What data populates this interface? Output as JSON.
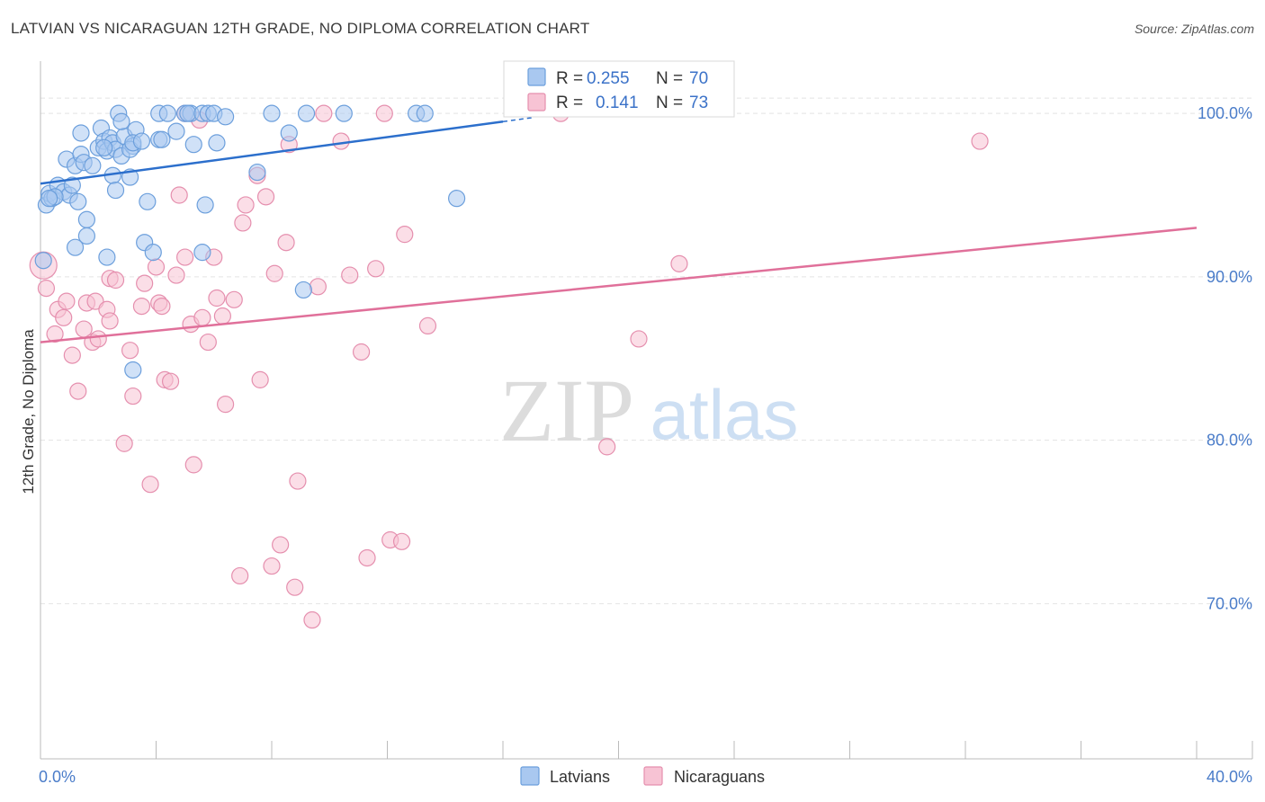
{
  "title": "LATVIAN VS NICARAGUAN 12TH GRADE, NO DIPLOMA CORRELATION CHART",
  "source": "Source: ZipAtlas.com",
  "watermark": {
    "zip": "ZIP",
    "atlas": "atlas"
  },
  "colors": {
    "latvian_fill": "#a9c8f0",
    "latvian_stroke": "#6c9fdc",
    "latvian_line": "#2c6fcc",
    "nicaraguan_fill": "#f7c3d4",
    "nicaraguan_stroke": "#e58fae",
    "nicaraguan_line": "#e0709a",
    "grid": "#e3e3e3",
    "tick_text": "#4a7cc9"
  },
  "legend": {
    "latvians": {
      "r_label": "R = ",
      "r_value": "0.255",
      "n_label": "N = ",
      "n_value": "70"
    },
    "nicaraguans": {
      "r_label": "R = ",
      "r_value": "0.141",
      "n_label": "N = ",
      "n_value": "73"
    }
  },
  "chart_data": {
    "type": "scatter",
    "title": "LATVIAN VS NICARAGUAN 12TH GRADE, NO DIPLOMA CORRELATION CHART",
    "xlabel": "",
    "ylabel": "12th Grade, No Diploma",
    "xlim": [
      0,
      40
    ],
    "ylim": [
      60.5,
      103.2
    ],
    "x_tick_labels": [
      "0.0%",
      "40.0%"
    ],
    "y_ticks": [
      70,
      80,
      90,
      100
    ],
    "y_tick_labels": [
      "70.0%",
      "80.0%",
      "90.0%",
      "100.0%"
    ],
    "legend_position": "top-center",
    "series": [
      {
        "name": "Latvians",
        "r": 0.255,
        "n": 70,
        "trend": {
          "x": [
            0,
            16
          ],
          "y": [
            95.7,
            99.5
          ],
          "dash_to": 17.0
        },
        "points": [
          [
            0.2,
            94.4
          ],
          [
            0.3,
            95.1
          ],
          [
            0.4,
            94.8
          ],
          [
            0.6,
            95.6
          ],
          [
            0.8,
            95.2
          ],
          [
            1.0,
            95.0
          ],
          [
            1.1,
            95.6
          ],
          [
            0.5,
            94.9
          ],
          [
            0.9,
            97.2
          ],
          [
            1.2,
            96.8
          ],
          [
            1.4,
            97.5
          ],
          [
            1.5,
            97.0
          ],
          [
            1.3,
            94.6
          ],
          [
            1.6,
            93.5
          ],
          [
            1.6,
            92.5
          ],
          [
            1.2,
            91.8
          ],
          [
            1.4,
            98.8
          ],
          [
            1.8,
            96.8
          ],
          [
            2.0,
            97.9
          ],
          [
            2.1,
            99.1
          ],
          [
            2.2,
            98.3
          ],
          [
            2.4,
            98.5
          ],
          [
            2.3,
            97.7
          ],
          [
            2.5,
            98.2
          ],
          [
            2.6,
            97.8
          ],
          [
            2.5,
            96.2
          ],
          [
            2.6,
            95.3
          ],
          [
            2.8,
            97.4
          ],
          [
            2.7,
            100.0
          ],
          [
            2.9,
            98.6
          ],
          [
            2.8,
            99.5
          ],
          [
            3.1,
            96.1
          ],
          [
            3.2,
            98.0
          ],
          [
            3.1,
            97.8
          ],
          [
            3.3,
            99.0
          ],
          [
            3.2,
            98.2
          ],
          [
            2.3,
            91.2
          ],
          [
            3.5,
            98.3
          ],
          [
            3.7,
            94.6
          ],
          [
            3.6,
            92.1
          ],
          [
            3.9,
            91.5
          ],
          [
            4.1,
            98.4
          ],
          [
            4.2,
            98.4
          ],
          [
            4.1,
            100.0
          ],
          [
            4.4,
            100.0
          ],
          [
            4.7,
            98.9
          ],
          [
            5.0,
            100.0
          ],
          [
            5.2,
            100.0
          ],
          [
            5.1,
            100.0
          ],
          [
            5.3,
            98.1
          ],
          [
            5.6,
            100.0
          ],
          [
            5.8,
            100.0
          ],
          [
            5.7,
            94.4
          ],
          [
            6.1,
            98.2
          ],
          [
            6.0,
            100.0
          ],
          [
            6.4,
            99.8
          ],
          [
            7.5,
            96.4
          ],
          [
            8.0,
            100.0
          ],
          [
            8.6,
            98.8
          ],
          [
            9.2,
            100.0
          ],
          [
            10.5,
            100.0
          ],
          [
            13.0,
            100.0
          ],
          [
            13.3,
            100.0
          ],
          [
            14.4,
            94.8
          ],
          [
            5.6,
            91.5
          ],
          [
            9.1,
            89.2
          ],
          [
            3.2,
            84.3
          ],
          [
            0.1,
            91.0
          ],
          [
            2.2,
            97.9
          ],
          [
            0.3,
            94.8
          ]
        ]
      },
      {
        "name": "Nicaraguans",
        "r": 0.141,
        "n": 73,
        "trend": {
          "x": [
            0,
            40
          ],
          "y": [
            86.0,
            93.0
          ]
        },
        "points": [
          [
            0.1,
            90.7
          ],
          [
            0.2,
            89.3
          ],
          [
            0.5,
            86.5
          ],
          [
            0.6,
            88.0
          ],
          [
            0.8,
            87.5
          ],
          [
            0.9,
            88.5
          ],
          [
            1.1,
            85.2
          ],
          [
            1.3,
            83.0
          ],
          [
            1.5,
            86.8
          ],
          [
            1.6,
            88.4
          ],
          [
            1.8,
            86.0
          ],
          [
            1.9,
            88.5
          ],
          [
            2.0,
            86.2
          ],
          [
            2.3,
            88.0
          ],
          [
            2.4,
            87.3
          ],
          [
            2.4,
            89.9
          ],
          [
            2.6,
            89.8
          ],
          [
            2.9,
            79.8
          ],
          [
            3.1,
            85.5
          ],
          [
            3.2,
            82.7
          ],
          [
            3.5,
            88.2
          ],
          [
            3.6,
            89.6
          ],
          [
            3.8,
            77.3
          ],
          [
            4.0,
            90.6
          ],
          [
            4.1,
            88.4
          ],
          [
            4.2,
            88.2
          ],
          [
            4.3,
            83.7
          ],
          [
            4.5,
            83.6
          ],
          [
            4.7,
            90.1
          ],
          [
            4.8,
            95.0
          ],
          [
            5.0,
            91.2
          ],
          [
            5.2,
            87.1
          ],
          [
            5.3,
            78.5
          ],
          [
            5.6,
            87.5
          ],
          [
            5.8,
            86.0
          ],
          [
            6.0,
            91.2
          ],
          [
            6.1,
            88.7
          ],
          [
            6.3,
            87.6
          ],
          [
            6.4,
            82.2
          ],
          [
            6.7,
            88.6
          ],
          [
            7.0,
            93.3
          ],
          [
            7.1,
            94.4
          ],
          [
            7.5,
            96.2
          ],
          [
            7.6,
            83.7
          ],
          [
            7.8,
            94.9
          ],
          [
            8.0,
            72.3
          ],
          [
            8.1,
            90.2
          ],
          [
            8.3,
            73.6
          ],
          [
            8.5,
            92.1
          ],
          [
            8.6,
            98.1
          ],
          [
            8.8,
            71.0
          ],
          [
            8.9,
            77.5
          ],
          [
            9.4,
            69.0
          ],
          [
            9.6,
            89.4
          ],
          [
            9.8,
            100.0
          ],
          [
            10.4,
            98.3
          ],
          [
            10.7,
            90.1
          ],
          [
            11.1,
            85.4
          ],
          [
            11.3,
            72.8
          ],
          [
            11.6,
            90.5
          ],
          [
            11.9,
            100.0
          ],
          [
            12.1,
            73.9
          ],
          [
            12.5,
            73.8
          ],
          [
            12.6,
            92.6
          ],
          [
            13.4,
            87.0
          ],
          [
            6.9,
            71.7
          ],
          [
            5.5,
            99.6
          ],
          [
            18.0,
            100.0
          ],
          [
            19.6,
            79.6
          ],
          [
            20.7,
            86.2
          ],
          [
            22.1,
            90.8
          ],
          [
            32.5,
            98.3
          ],
          [
            5.0,
            100.0
          ]
        ]
      }
    ]
  }
}
